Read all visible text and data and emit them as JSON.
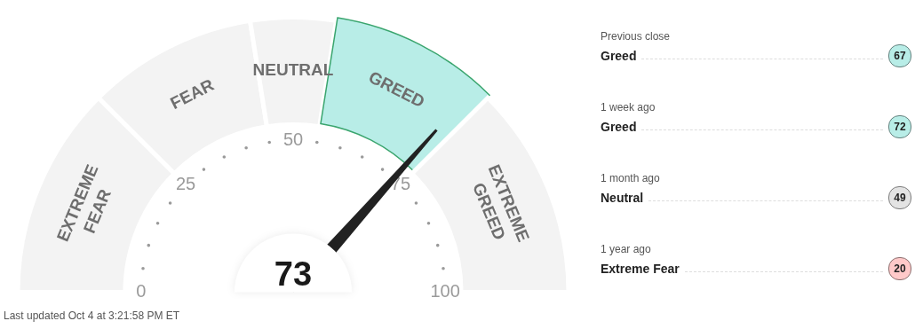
{
  "chart_data": [
    {
      "type": "donut",
      "categories": [
        "EXTREME FEAR",
        "FEAR",
        "NEUTRAL",
        "GREED",
        "EXTREME GREED"
      ],
      "values": [
        25,
        20,
        10,
        20,
        25
      ],
      "colors": [
        "#f3f3f3",
        "#f3f3f3",
        "#f3f3f3",
        "#b8ede7",
        "#f3f3f3"
      ],
      "needle": "GREED",
      "annotations": [
        "73",
        "0",
        "25",
        "50",
        "75",
        "100",
        "Last updated Oct 4 at 3:21:58 PM ET"
      ]
    },
    {
      "type": "other",
      "annotations": [
        "Previous close",
        "Greed",
        "67",
        "1 week ago",
        "Greed",
        "72",
        "1 month ago",
        "Neutral",
        "49",
        "1 year ago",
        "Extreme Fear",
        "20"
      ],
      "colors": [
        "#b8ede7",
        "#b8ede7",
        "#e3e3e3",
        "#ffc9c9"
      ]
    }
  ]
}
